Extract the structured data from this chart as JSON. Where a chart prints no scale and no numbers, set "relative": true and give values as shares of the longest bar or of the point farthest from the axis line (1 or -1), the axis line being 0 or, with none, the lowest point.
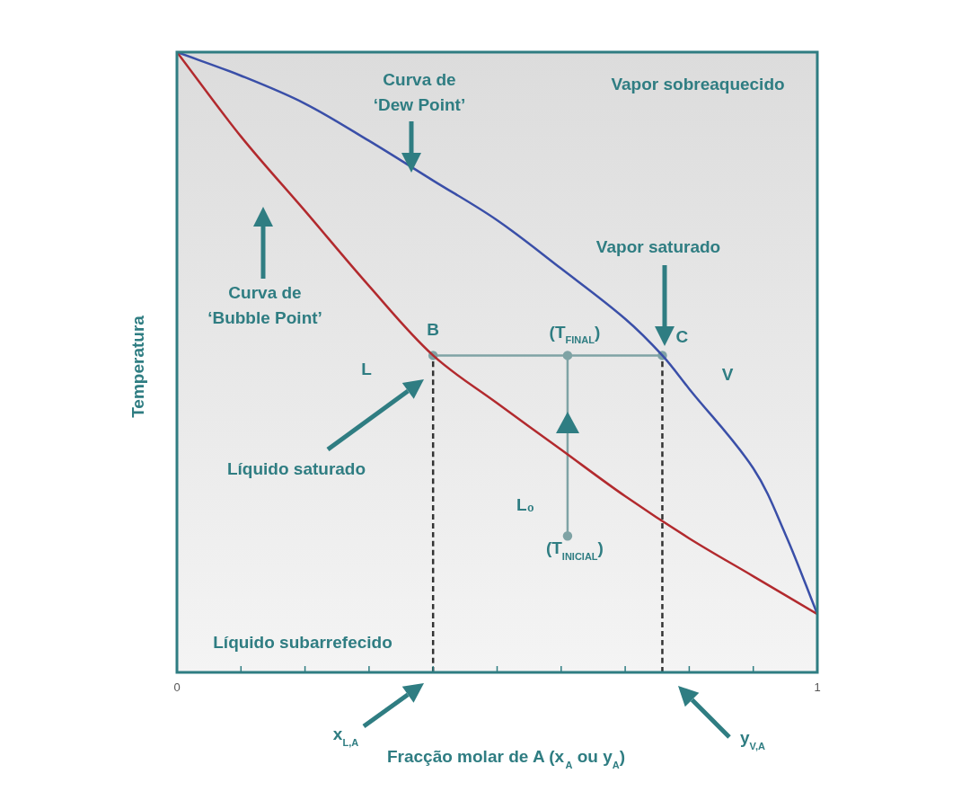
{
  "chart_data": {
    "type": "line",
    "relative": true,
    "xlabel": "Fracção molar de A (x$_{A}$ ou y$_{A}$)",
    "ylabel": "Temperatura",
    "xlim": [
      0,
      1
    ],
    "xticks": [
      0,
      {
        "value": 0.1,
        "label": null
      },
      {
        "value": 0.2,
        "label": null
      },
      {
        "value": 0.3,
        "label": null
      },
      {
        "value": 0.4,
        "label": null
      },
      {
        "value": 0.5,
        "label": null
      },
      {
        "value": 0.6,
        "label": null
      },
      {
        "value": 0.7,
        "label": null
      },
      {
        "value": 0.8,
        "label": null
      },
      {
        "value": 0.9,
        "label": null
      },
      1
    ],
    "grid": false,
    "legend": false,
    "marker": "none",
    "line_style": "solid",
    "series": [
      {
        "color": "#b22a2e",
        "x": [
          0,
          0.1,
          0.2,
          0.3,
          0.4,
          0.5,
          0.6,
          0.7,
          0.8,
          0.9,
          1
        ],
        "values": [
          1,
          0.864,
          0.744,
          0.623,
          0.511,
          0.434,
          0.359,
          0.284,
          0.216,
          0.155,
          0.094
        ]
      },
      {
        "color": "#3a4fa8",
        "x": [
          0,
          0.1,
          0.2,
          0.3,
          0.4,
          0.5,
          0.6,
          0.7,
          0.758,
          0.8,
          0.9,
          0.95,
          1
        ],
        "values": [
          1,
          0.962,
          0.917,
          0.857,
          0.793,
          0.729,
          0.651,
          0.57,
          0.511,
          0.457,
          0.329,
          0.223,
          0.094
        ]
      },
      {
        "color": "#7fa3a5",
        "marker": "circle",
        "x": [
          0.4,
          0.758
        ],
        "values": [
          0.511,
          0.511
        ]
      },
      {
        "color": "#7fa3a5",
        "marker": "circle",
        "x": [
          0.61,
          0.61
        ],
        "values": [
          0.22,
          0.511
        ]
      },
      {
        "color": "#333333",
        "line_style": "dashed",
        "x": [
          0.4,
          0.4
        ],
        "values": [
          0,
          0.511
        ]
      },
      {
        "color": "#333333",
        "line_style": "dashed",
        "x": [
          0.758,
          0.758
        ],
        "values": [
          0,
          0.511
        ]
      }
    ],
    "annotations": [
      "Curva de\n‘Dew Point’",
      "Vapor sobreaquecido",
      "Vapor saturado",
      "Curva de\n‘Bubble Point’",
      "L",
      "V",
      "Líquido saturado",
      "L₀",
      "Líquido subarrefecido",
      "x$_{L,A}$",
      "y$_{V,A}$",
      {
        "text": "B",
        "x": 0.4,
        "y": 0.511
      },
      {
        "text": "C",
        "x": 0.758,
        "y": 0.511
      },
      {
        "text": "(T$_{FINAL}$)",
        "x": 0.61,
        "y": 0.511
      },
      {
        "text": "(T$_{INICIAL}$)",
        "x": 0.61,
        "y": 0.22
      }
    ]
  }
}
